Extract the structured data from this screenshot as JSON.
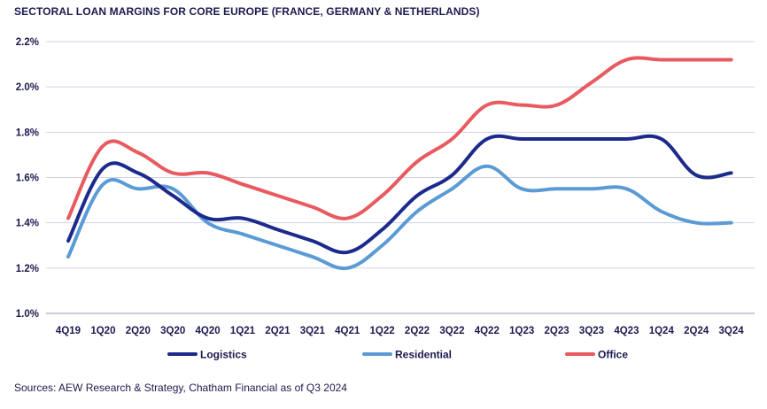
{
  "title": "SECTORAL LOAN MARGINS FOR CORE EUROPE (FRANCE, GERMANY & NETHERLANDS)",
  "source": "Sources: AEW Research & Strategy, Chatham Financial as of Q3 2024",
  "chart_data": {
    "type": "line",
    "title": "SECTORAL LOAN MARGINS FOR CORE EUROPE (FRANCE, GERMANY & NETHERLANDS)",
    "xlabel": "",
    "ylabel": "",
    "ylim": [
      1.0,
      2.2
    ],
    "yticks": [
      "1.0%",
      "1.2%",
      "1.4%",
      "1.6%",
      "1.8%",
      "2.0%",
      "2.2%"
    ],
    "ytick_values": [
      1.0,
      1.2,
      1.4,
      1.6,
      1.8,
      2.0,
      2.2
    ],
    "grid": "horizontal",
    "legend_position": "bottom",
    "categories": [
      "4Q19",
      "1Q20",
      "2Q20",
      "3Q20",
      "4Q20",
      "1Q21",
      "2Q21",
      "3Q21",
      "4Q21",
      "1Q22",
      "2Q22",
      "3Q22",
      "4Q22",
      "1Q23",
      "2Q23",
      "3Q23",
      "4Q23",
      "1Q24",
      "2Q24",
      "3Q24"
    ],
    "series": [
      {
        "name": "Logistics",
        "color": "#1c2a8c",
        "values": [
          1.32,
          1.64,
          1.62,
          1.52,
          1.42,
          1.42,
          1.37,
          1.32,
          1.27,
          1.37,
          1.52,
          1.61,
          1.77,
          1.77,
          1.77,
          1.77,
          1.77,
          1.77,
          1.61,
          1.62
        ]
      },
      {
        "name": "Residential",
        "color": "#5b9bd5",
        "values": [
          1.25,
          1.57,
          1.55,
          1.55,
          1.4,
          1.35,
          1.3,
          1.25,
          1.2,
          1.3,
          1.45,
          1.55,
          1.65,
          1.55,
          1.55,
          1.55,
          1.55,
          1.45,
          1.4,
          1.4
        ]
      },
      {
        "name": "Office",
        "color": "#e85a5f",
        "values": [
          1.42,
          1.74,
          1.71,
          1.62,
          1.62,
          1.57,
          1.52,
          1.47,
          1.42,
          1.52,
          1.67,
          1.77,
          1.92,
          1.92,
          1.92,
          2.02,
          2.12,
          2.12,
          2.12,
          2.12
        ]
      }
    ]
  }
}
